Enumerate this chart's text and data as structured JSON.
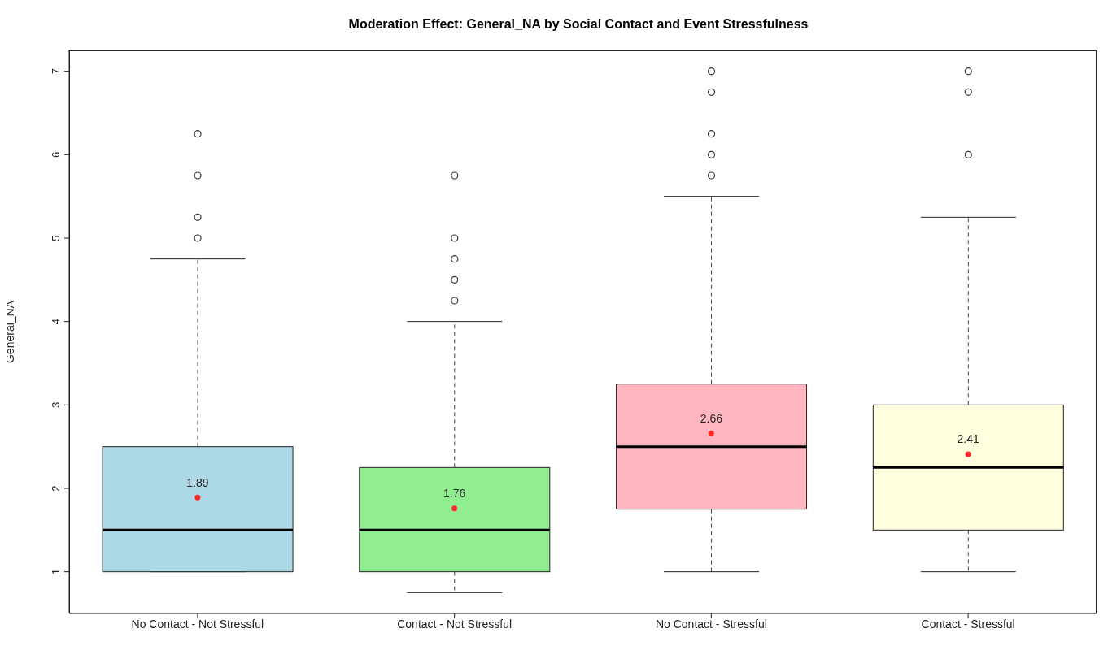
{
  "chart_data": {
    "type": "box",
    "title": "Moderation Effect: General_NA by Social Contact and Event Stressfulness",
    "ylabel": "General_NA",
    "categories": [
      "No Contact - Not Stressful",
      "Contact - Not Stressful",
      "No Contact - Stressful",
      "Contact - Stressful"
    ],
    "colors": [
      "#add8e6",
      "#90ee90",
      "#ffb6c1",
      "#ffffe0"
    ],
    "boxes": [
      {
        "low": 1,
        "q1": 1,
        "median": 1.5,
        "q3": 2.5,
        "high": 4.75,
        "outliers": [
          5,
          5.25,
          5.75,
          6.25
        ]
      },
      {
        "low": 0.75,
        "q1": 1,
        "median": 1.5,
        "q3": 2.25,
        "high": 4,
        "outliers": [
          4.25,
          4.5,
          4.75,
          5,
          5.75
        ]
      },
      {
        "low": 1,
        "q1": 1.75,
        "median": 2.5,
        "q3": 3.25,
        "high": 5.5,
        "outliers": [
          5.75,
          6,
          6.25,
          6.75,
          7
        ]
      },
      {
        "low": 1,
        "q1": 1.5,
        "median": 2.25,
        "q3": 3,
        "high": 5.25,
        "outliers": [
          6,
          6.75,
          7
        ]
      }
    ],
    "series": [
      {
        "type": "scatter",
        "color": "#ff2a2a",
        "x": [
          "No Contact - Not Stressful",
          "Contact - Not Stressful",
          "No Contact - Stressful",
          "Contact - Stressful"
        ],
        "values": [
          1.89,
          1.76,
          2.66,
          2.41
        ]
      }
    ],
    "data_labels": true,
    "ylim": [
      0.5,
      7.25
    ],
    "yticks": [
      1,
      2,
      3,
      4,
      5,
      6,
      7
    ],
    "grid": false,
    "legend": false
  }
}
